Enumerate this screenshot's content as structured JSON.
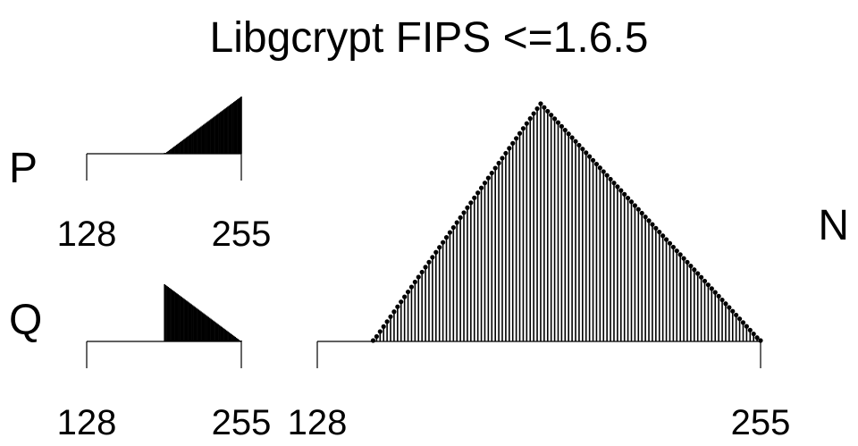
{
  "title": "Libgcrypt FIPS <=1.6.5",
  "chart_data": [
    {
      "type": "bar",
      "label": "P",
      "xlim": [
        128,
        255
      ],
      "tick_labels": [
        "128",
        "255"
      ],
      "shape": "ascending triangle",
      "nonzero_range": [
        192,
        255
      ],
      "peak_at": 255,
      "relative_peak": 1.0,
      "color": "#000000"
    },
    {
      "type": "bar",
      "label": "Q",
      "xlim": [
        128,
        255
      ],
      "tick_labels": [
        "128",
        "255"
      ],
      "shape": "descending triangle",
      "nonzero_range": [
        192,
        255
      ],
      "peak_at": 192,
      "relative_peak": 1.0,
      "color": "#000000"
    },
    {
      "type": "bar",
      "label": "N",
      "xlim": [
        128,
        255
      ],
      "tick_labels": [
        "128",
        "255"
      ],
      "shape": "triangle",
      "nonzero_range": [
        144,
        255
      ],
      "peak_at": 192,
      "relative_peak": 1.0,
      "color": "#000000"
    }
  ]
}
